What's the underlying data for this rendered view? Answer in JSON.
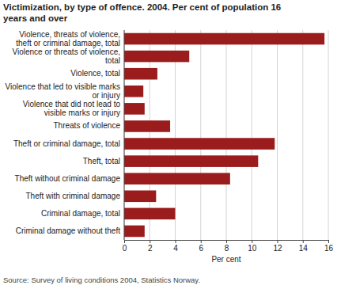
{
  "chart_data": {
    "type": "bar",
    "orientation": "horizontal",
    "title": "Victimization, by type of offence. 2004. Per cent of population 16 years and over",
    "categories": [
      "Violence, threats of violence, theft or criminal damage, total",
      "Violence or threats of violence, total",
      "Violence, total",
      "Violence that led to visible marks or injury",
      "Violence that did not lead to visible marks or injury",
      "Threats of violence",
      "Theft or criminal damage, total",
      "Theft, total",
      "Theft without criminal damage",
      "Theft with criminal damage",
      "Criminal damage, total",
      "Criminal damage without theft"
    ],
    "values": [
      15.7,
      5.1,
      2.6,
      1.5,
      1.6,
      3.6,
      11.8,
      10.5,
      8.3,
      2.5,
      4.0,
      1.6
    ],
    "color": "#9b1c1c",
    "xlabel": "Per cent",
    "xlim": [
      0,
      16
    ],
    "xticks": [
      0,
      2,
      4,
      6,
      8,
      10,
      12,
      14,
      16
    ],
    "grid": true,
    "source": "Source: Survey of living conditions 2004, Statistics Norway."
  }
}
